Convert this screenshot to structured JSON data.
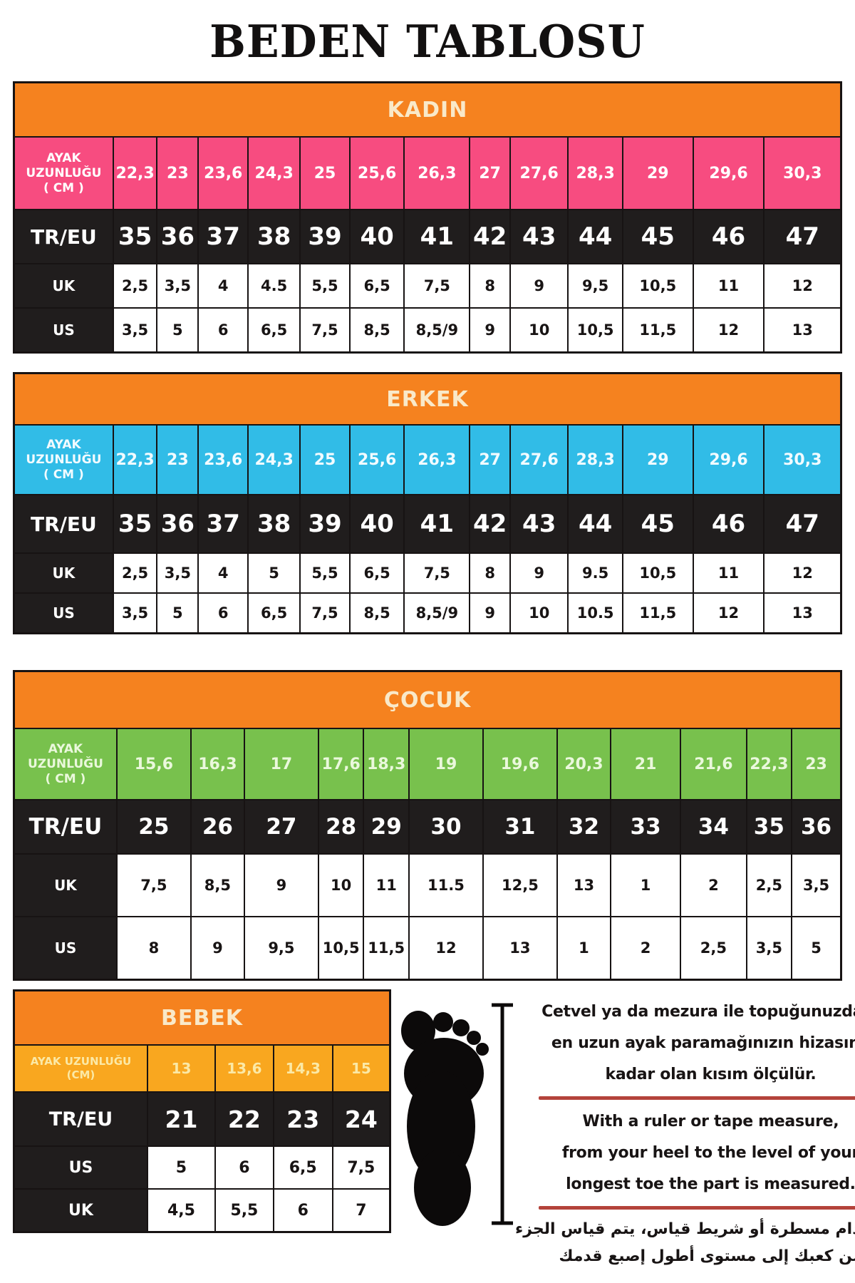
{
  "page_title": "BEDEN TABLOSU",
  "colors": {
    "header_orange": "#F5821F",
    "header_text_cream": "#F9E9C9",
    "kadin_pink": "#F74C80",
    "erkek_blue": "#31BCE7",
    "cocuk_green": "#78C14D",
    "bebek_amber": "#F9A71F",
    "dark_row": "#201D1D",
    "red_underline": "#B4433B"
  },
  "icons": {
    "foot": "foot-silhouette-icon",
    "measure": "measurement-line-icon"
  },
  "sections": [
    {
      "id": "kadin",
      "header": "KADIN",
      "accent_label_lines": [
        "AYAK",
        "UZUNLUĞU",
        "( CM )"
      ],
      "accent_values": [
        "22,3",
        "23",
        "23,6",
        "24,3",
        "25",
        "25,6",
        "26,3",
        "27",
        "27,6",
        "28,3",
        "29",
        "29,6",
        "30,3"
      ],
      "rows": [
        {
          "label": "TR/EU",
          "type": "dark",
          "values": [
            "35",
            "36",
            "37",
            "38",
            "39",
            "40",
            "41",
            "42",
            "43",
            "44",
            "45",
            "46",
            "47"
          ]
        },
        {
          "label": "UK",
          "type": "light",
          "values": [
            "2,5",
            "3,5",
            "4",
            "4.5",
            "5,5",
            "6,5",
            "7,5",
            "8",
            "9",
            "9,5",
            "10,5",
            "11",
            "12"
          ]
        },
        {
          "label": "US",
          "type": "light",
          "values": [
            "3,5",
            "5",
            "6",
            "6,5",
            "7,5",
            "8,5",
            "8,5/9",
            "9",
            "10",
            "10,5",
            "11,5",
            "12",
            "13"
          ]
        }
      ]
    },
    {
      "id": "erkek",
      "header": "ERKEK",
      "accent_label_lines": [
        "AYAK",
        "UZUNLUĞU",
        "( CM )"
      ],
      "accent_values": [
        "22,3",
        "23",
        "23,6",
        "24,3",
        "25",
        "25,6",
        "26,3",
        "27",
        "27,6",
        "28,3",
        "29",
        "29,6",
        "30,3"
      ],
      "rows": [
        {
          "label": "TR/EU",
          "type": "dark",
          "values": [
            "35",
            "36",
            "37",
            "38",
            "39",
            "40",
            "41",
            "42",
            "43",
            "44",
            "45",
            "46",
            "47"
          ]
        },
        {
          "label": "UK",
          "type": "light",
          "values": [
            "2,5",
            "3,5",
            "4",
            "5",
            "5,5",
            "6,5",
            "7,5",
            "8",
            "9",
            "9.5",
            "10,5",
            "11",
            "12"
          ]
        },
        {
          "label": "US",
          "type": "light",
          "values": [
            "3,5",
            "5",
            "6",
            "6,5",
            "7,5",
            "8,5",
            "8,5/9",
            "9",
            "10",
            "10.5",
            "11,5",
            "12",
            "13"
          ]
        }
      ]
    },
    {
      "id": "cocuk",
      "header": "ÇOCUK",
      "accent_label_lines": [
        "AYAK",
        "UZUNLUĞU",
        "( CM )"
      ],
      "accent_values": [
        "15,6",
        "16,3",
        "17",
        "17,6",
        "18,3",
        "19",
        "19,6",
        "20,3",
        "21",
        "21,6",
        "22,3",
        "23"
      ],
      "rows": [
        {
          "label": "TR/EU",
          "type": "dark",
          "values": [
            "25",
            "26",
            "27",
            "28",
            "29",
            "30",
            "31",
            "32",
            "33",
            "34",
            "35",
            "36"
          ]
        },
        {
          "label": "UK",
          "type": "light",
          "values": [
            "7,5",
            "8,5",
            "9",
            "10",
            "11",
            "11.5",
            "12,5",
            "13",
            "1",
            "2",
            "2,5",
            "3,5"
          ]
        },
        {
          "label": "US",
          "type": "light",
          "values": [
            "8",
            "9",
            "9,5",
            "10,5",
            "11,5",
            "12",
            "13",
            "1",
            "2",
            "2,5",
            "3,5",
            "5"
          ]
        }
      ]
    },
    {
      "id": "bebek",
      "header": "BEBEK",
      "accent_label_lines": [
        "AYAK UZUNLUĞU",
        "(CM)"
      ],
      "accent_values": [
        "13",
        "13,6",
        "14,3",
        "15"
      ],
      "rows": [
        {
          "label": "TR/EU",
          "type": "dark",
          "values": [
            "21",
            "22",
            "23",
            "24"
          ]
        },
        {
          "label": "US",
          "type": "light",
          "values": [
            "5",
            "6",
            "6,5",
            "7,5"
          ]
        },
        {
          "label": "UK",
          "type": "light",
          "values": [
            "4,5",
            "5,5",
            "6",
            "7"
          ]
        }
      ]
    }
  ],
  "instructions": {
    "tr_lines": [
      "Cetvel ya da mezura ile topuğunuzdan,",
      "en uzun ayak paramağınızın hizasına",
      "kadar olan kısım ölçülür."
    ],
    "en_lines": [
      "With a ruler or tape measure,",
      "from your heel to the level of your",
      "longest toe the part is measured."
    ],
    "ar_lines": [
      "باستخدام مسطرة أو شريط قياس، يتم قياس الجزء",
      "من كعبك إلى مستوى أطول إصبع قدمك"
    ]
  }
}
